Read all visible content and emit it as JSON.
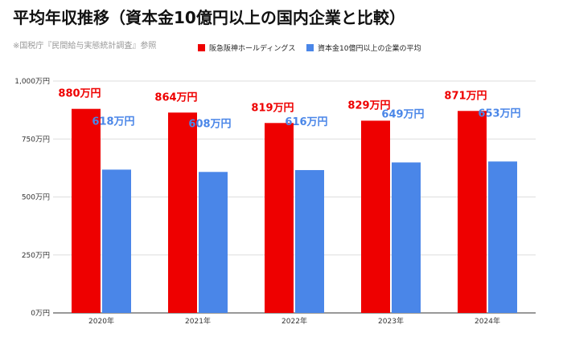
{
  "chart_data": {
    "type": "bar",
    "title": "平均年収推移（資本金10億円以上の国内企業と比較）",
    "source": "※国税庁『民間給与実態統計調査』参照",
    "categories": [
      "2020年",
      "2021年",
      "2022年",
      "2023年",
      "2024年"
    ],
    "ylim": [
      0,
      1000
    ],
    "yticks": [
      0,
      250,
      500,
      750,
      1000
    ],
    "ytick_labels": [
      "0万円",
      "250万円",
      "500万円",
      "750万円",
      "1,000万円"
    ],
    "grid": true,
    "legend_position": "top-right",
    "series": [
      {
        "name": "阪急阪神ホールディングス",
        "color": "#ee0000",
        "label_color": "#ee0000",
        "values": [
          880,
          864,
          819,
          829,
          871
        ],
        "labels": [
          "880万円",
          "864万円",
          "819万円",
          "829万円",
          "871万円"
        ]
      },
      {
        "name": "資本金10億円以上の企業の平均",
        "color": "#4a86e8",
        "label_color": "#4a86e8",
        "values": [
          618,
          608,
          616,
          649,
          653
        ],
        "labels": [
          "618万円",
          "608万円",
          "616万円",
          "649万円",
          "653万円"
        ]
      }
    ]
  }
}
